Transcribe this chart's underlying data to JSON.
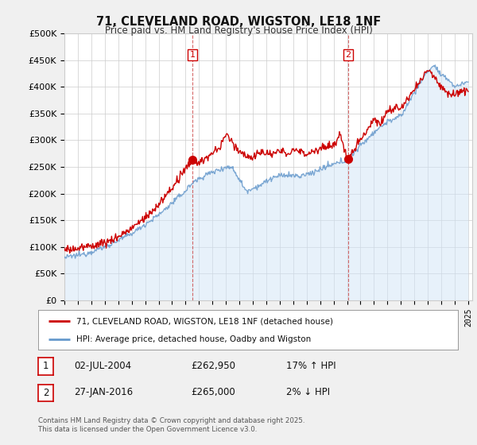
{
  "title": "71, CLEVELAND ROAD, WIGSTON, LE18 1NF",
  "subtitle": "Price paid vs. HM Land Registry's House Price Index (HPI)",
  "ylabel_ticks": [
    "£0",
    "£50K",
    "£100K",
    "£150K",
    "£200K",
    "£250K",
    "£300K",
    "£350K",
    "£400K",
    "£450K",
    "£500K"
  ],
  "ytick_values": [
    0,
    50000,
    100000,
    150000,
    200000,
    250000,
    300000,
    350000,
    400000,
    450000,
    500000
  ],
  "ylim": [
    0,
    500000
  ],
  "year_start": 1995,
  "year_end": 2025,
  "marker1_date": "02-JUL-2004",
  "marker1_price": 262950,
  "marker1_hpi_str": "17% ↑ HPI",
  "marker1_x": 2004.5,
  "marker2_date": "27-JAN-2016",
  "marker2_price": 265000,
  "marker2_hpi_str": "2% ↓ HPI",
  "marker2_x": 2016.08,
  "legend_line1": "71, CLEVELAND ROAD, WIGSTON, LE18 1NF (detached house)",
  "legend_line2": "HPI: Average price, detached house, Oadby and Wigston",
  "footer": "Contains HM Land Registry data © Crown copyright and database right 2025.\nThis data is licensed under the Open Government Licence v3.0.",
  "red_color": "#cc0000",
  "blue_color": "#6699cc",
  "blue_fill": "#d0e4f7",
  "background": "#f0f0f0",
  "plot_bg": "#ffffff",
  "grid_color": "#cccccc",
  "dashed_color": "#cc4444"
}
